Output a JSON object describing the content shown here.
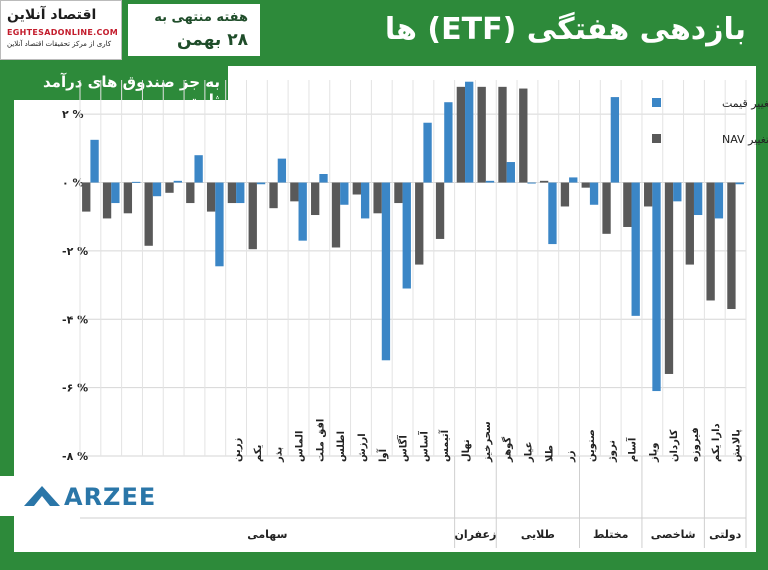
{
  "header": {
    "logo_title": "اقتصاد آنلاین",
    "logo_url": "EGHTESADONLINE.COM",
    "logo_tagline": "کاری از مرکز تحقیقات اقتصاد آنلاین",
    "week_label": "هفته منتهی به",
    "week_date": "۲۸ بهمن",
    "title": "بازدهی هفتگی (ETF) ها",
    "subtitle": "به جز صندوق های درآمد ثابت"
  },
  "brand": {
    "text": "ARZEE"
  },
  "colors": {
    "frame_green": "#2d8a3a",
    "price_series": "#3b86c6",
    "nav_series": "#595959"
  },
  "chart_data": {
    "type": "bar",
    "title": "بازدهی هفتگی (ETF) ها",
    "subtitle": "به جز صندوق های درآمد ثابت",
    "categories": [
      "",
      "",
      "",
      "",
      "",
      "",
      "",
      "زرین",
      "یکم",
      "بذر",
      "الماس",
      "افق ملت",
      "اطلس",
      "ارزش",
      "آوا",
      "آگاس",
      "آساس",
      "آتیمس",
      "نهال",
      "سحرخیز",
      "گوهر",
      "عیار",
      "طلا",
      "زر",
      "صنوین",
      "نروژ",
      "آسام",
      "ویاز",
      "کاردان",
      "فیروزه",
      "دارا یکم",
      "پالایش"
    ],
    "groups": [
      {
        "name": "سهامی",
        "count": 18
      },
      {
        "name": "زعفران",
        "count": 2
      },
      {
        "name": "طلایی",
        "count": 4
      },
      {
        "name": "مختلط",
        "count": 3
      },
      {
        "name": "شاخصی",
        "count": 3
      },
      {
        "name": "دولتی",
        "count": 2
      }
    ],
    "series": [
      {
        "name": "تغییر NAV",
        "values": [
          -0.85,
          -1.05,
          -0.9,
          -1.85,
          -0.3,
          -0.6,
          -0.85,
          -0.6,
          -1.95,
          -0.75,
          -0.55,
          -0.95,
          -1.9,
          -0.35,
          -0.9,
          -0.6,
          -2.4,
          -1.65,
          2.8,
          2.8,
          2.8,
          2.75,
          0.05,
          -0.7,
          -0.15,
          -1.5,
          -1.3,
          -0.7,
          -5.6,
          -2.4,
          -3.45,
          -3.7
        ]
      },
      {
        "name": "تغییر قیمت",
        "values": [
          1.25,
          -0.6,
          0.02,
          -0.4,
          0.05,
          0.8,
          -2.45,
          -0.6,
          -0.05,
          0.7,
          -1.7,
          0.25,
          -0.65,
          -1.05,
          -5.2,
          -3.1,
          1.75,
          2.35,
          2.95,
          0.05,
          0.6,
          0.0,
          -1.8,
          0.15,
          -0.65,
          2.5,
          -3.9,
          -6.1,
          -0.55,
          -0.95,
          -1.05,
          -0.05
        ]
      }
    ],
    "yticks": [
      "۲ %",
      "۰ %",
      "-۲ %",
      "-۴ %",
      "-۶ %",
      "-۸ %"
    ],
    "ylim": [
      -8,
      3
    ],
    "grid": true,
    "legend_position": "top-right"
  }
}
